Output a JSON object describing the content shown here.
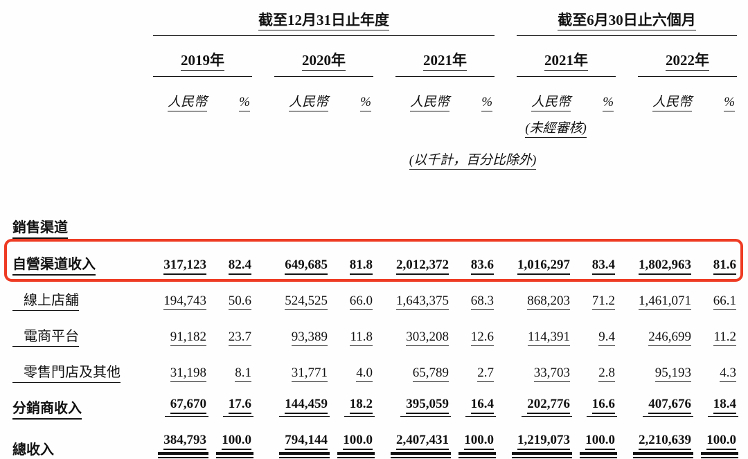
{
  "header": {
    "annual_period": "截至12月31日止年度",
    "interim_period": "截至6月30日止六個月",
    "years": [
      "2019年",
      "2020年",
      "2021年",
      "2021年",
      "2022年"
    ],
    "currency_label": "人民幣",
    "percent_label": "%",
    "unaudited_note": "(未經審核)",
    "units_note": "(以千計，百分比除外)"
  },
  "table": {
    "section_label": "銷售渠道",
    "column_groups": [
      "2019年",
      "2020年",
      "2021年",
      "2021年(六個月)",
      "2022年(六個月)"
    ],
    "rows": [
      {
        "label": "自營渠道收入",
        "style": "bold highlight",
        "values": [
          "317,123",
          "82.4",
          "649,685",
          "81.8",
          "2,012,372",
          "83.6",
          "1,016,297",
          "83.4",
          "1,802,963",
          "81.6"
        ]
      },
      {
        "label": "線上店舖",
        "style": "sub",
        "values": [
          "194,743",
          "50.6",
          "524,525",
          "66.0",
          "1,643,375",
          "68.3",
          "868,203",
          "71.2",
          "1,461,071",
          "66.1"
        ]
      },
      {
        "label": "電商平台",
        "style": "sub",
        "values": [
          "91,182",
          "23.7",
          "93,389",
          "11.8",
          "303,208",
          "12.6",
          "114,391",
          "9.4",
          "246,699",
          "11.2"
        ]
      },
      {
        "label": "零售門店及其他",
        "style": "sub",
        "values": [
          "31,198",
          "8.1",
          "31,771",
          "4.0",
          "65,789",
          "2.7",
          "33,703",
          "2.8",
          "95,193",
          "4.3"
        ]
      },
      {
        "label": "分銷商收入",
        "style": "bold subtotal",
        "values": [
          "67,670",
          "17.6",
          "144,459",
          "18.2",
          "395,059",
          "16.4",
          "202,776",
          "16.6",
          "407,676",
          "18.4"
        ]
      },
      {
        "label": "總收入",
        "style": "bold total",
        "values": [
          "384,793",
          "100.0",
          "794,144",
          "100.0",
          "2,407,431",
          "100.0",
          "1,219,073",
          "100.0",
          "2,210,639",
          "100.0"
        ]
      }
    ]
  },
  "annotation": {
    "highlight_color": "#ee3b23"
  }
}
